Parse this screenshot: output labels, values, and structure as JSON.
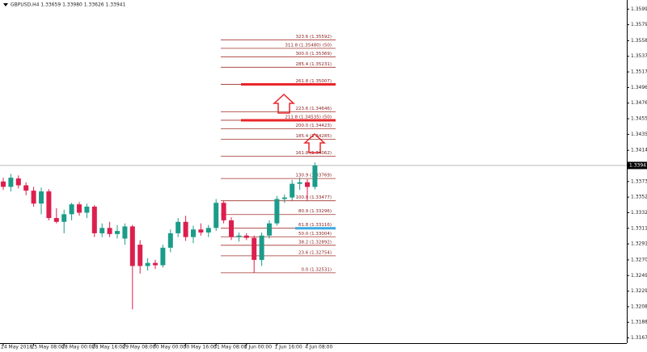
{
  "chart_data": {
    "type": "candlestick",
    "title": "GBPUSD,H4  1.33659 1.33980 1.33626 1.33941",
    "categories": [
      "24 May 2018",
      null,
      null,
      null,
      "25 May 08:00",
      null,
      null,
      null,
      "28 May 00:00",
      null,
      null,
      null,
      "28 May 16:00",
      null,
      null,
      null,
      "29 May 08:00",
      null,
      null,
      null,
      "30 May 00:00",
      null,
      null,
      null,
      "30 May 16:00",
      null,
      null,
      null,
      "31 May 08:00",
      null,
      null,
      null,
      "1 Jun 00:00",
      null,
      null,
      null,
      "1 Jun 16:00",
      null,
      null,
      null,
      "4 Jun 08:00",
      null
    ],
    "open": [
      1.3373,
      1.3366,
      1.3377,
      1.3368,
      1.3361,
      1.3344,
      1.336,
      1.3325,
      1.332,
      1.333,
      1.3343,
      1.3332,
      1.334,
      1.3305,
      1.3312,
      1.3304,
      1.3298,
      1.3314,
      1.329,
      1.3262,
      1.3266,
      1.3263,
      1.3286,
      1.3305,
      1.332,
      1.33,
      1.331,
      1.3306,
      1.3312,
      1.3345,
      1.3322,
      1.33,
      1.3302,
      1.3299,
      1.327,
      1.3302,
      1.3318,
      1.335,
      1.3352,
      1.337,
      1.3372,
      1.33659
    ],
    "high": [
      1.3378,
      1.3383,
      1.3381,
      1.3372,
      1.3366,
      1.3365,
      1.3363,
      1.3338,
      1.3336,
      1.3345,
      1.3346,
      1.3344,
      1.3342,
      1.3318,
      1.332,
      1.3316,
      1.3318,
      1.3316,
      1.3296,
      1.3272,
      1.327,
      1.329,
      1.331,
      1.3325,
      1.3328,
      1.3315,
      1.3318,
      1.3316,
      1.335,
      1.33477,
      1.3326,
      1.3306,
      1.3305,
      1.3302,
      1.3306,
      1.3322,
      1.3354,
      1.3356,
      1.3375,
      1.3378,
      1.3376,
      1.3398
    ],
    "low": [
      1.3362,
      1.336,
      1.3364,
      1.3355,
      1.334,
      1.333,
      1.3322,
      1.3318,
      1.3305,
      1.3322,
      1.3328,
      1.3325,
      1.33,
      1.33,
      1.33,
      1.3298,
      1.329,
      1.3205,
      1.3252,
      1.3256,
      1.3258,
      1.326,
      1.328,
      1.33,
      1.3295,
      1.3292,
      1.3302,
      1.33,
      1.3308,
      1.3318,
      1.3296,
      1.3294,
      1.3296,
      1.32531,
      1.3262,
      1.3298,
      1.3315,
      1.3345,
      1.3348,
      1.3362,
      1.3348,
      1.33626
    ],
    "close": [
      1.3366,
      1.3378,
      1.3368,
      1.3361,
      1.3344,
      1.336,
      1.3325,
      1.332,
      1.333,
      1.3343,
      1.3332,
      1.334,
      1.3305,
      1.3312,
      1.3304,
      1.3308,
      1.3314,
      1.3262,
      1.3262,
      1.3266,
      1.3263,
      1.3286,
      1.3305,
      1.332,
      1.33,
      1.331,
      1.3306,
      1.3312,
      1.3345,
      1.3322,
      1.33,
      1.3302,
      1.3299,
      1.327,
      1.3302,
      1.3318,
      1.335,
      1.3352,
      1.337,
      1.3372,
      1.33659,
      1.33941
    ],
    "up_color": "#1b9c8a",
    "down_color": "#dc1f4e",
    "ylim": [
      1.3149,
      1.3603
    ],
    "yticks": [
      1.35995,
      {
        "value": 1.3579,
        "label": "1.35790"
      },
      {
        "value": 1.3558,
        "label": "1.35580"
      },
      1.35375,
      {
        "value": 1.3517,
        "label": "1.35170"
      },
      1.34965,
      {
        "value": 1.3476,
        "label": "1.34760"
      },
      1.34555,
      {
        "value": 1.3435,
        "label": "1.34350"
      },
      {
        "value": 1.3414,
        "label": "1.34140"
      },
      {
        "value": 1.3373,
        "label": "1.33730"
      },
      1.33525,
      {
        "value": 1.3332,
        "label": "1.33320"
      },
      1.33115,
      {
        "value": 1.3291,
        "label": "1.32910"
      },
      {
        "value": 1.327,
        "label": "1.32700"
      },
      1.32495,
      {
        "value": 1.3229,
        "label": "1.32290"
      },
      1.32085,
      {
        "value": 1.3188,
        "label": "1.31880"
      },
      1.31675
    ],
    "current_price": 1.33941,
    "fib_levels": [
      {
        "value": 1.35592,
        "label": "323.6 (1.35592)"
      },
      {
        "value": 1.3548,
        "label": "311.8 (1.35480) (50)"
      },
      {
        "value": 1.35369,
        "label": "300.0 (1.35369)"
      },
      {
        "value": 1.35231,
        "label": "285.4 (1.35231)"
      },
      {
        "value": 1.35007,
        "label": "261.8 (1.35007)",
        "color": "#e8262a"
      },
      {
        "value": 1.34646,
        "label": "223.6 (1.34646)"
      },
      {
        "value": 1.34535,
        "label": "211.8 (1.34535) (50)",
        "color": "#e8262a"
      },
      {
        "value": 1.34423,
        "label": "200.0 (1.34423)"
      },
      {
        "value": 1.34285,
        "label": "185.4 (1.34285)"
      },
      {
        "value": 1.34062,
        "label": "161.8 (1.34062)"
      },
      {
        "value": 1.33769,
        "label": "130.9 (1.33769)"
      },
      {
        "value": 1.33477,
        "label": "100.0 (1.33477)"
      },
      {
        "value": 1.33296,
        "label": "80.9 (1.33296)"
      },
      {
        "value": 1.33116,
        "label": "61.8 (1.33116)",
        "color": "#3aa9e0"
      },
      {
        "value": 1.33004,
        "label": "50.0 (1.33004)"
      },
      {
        "value": 1.32892,
        "label": "38.2 (1.32892)"
      },
      {
        "value": 1.32754,
        "label": "23.6 (1.32754)"
      },
      {
        "value": 1.32531,
        "label": "0.0 (1.32531)"
      }
    ],
    "fib_color": "#a0302a"
  }
}
